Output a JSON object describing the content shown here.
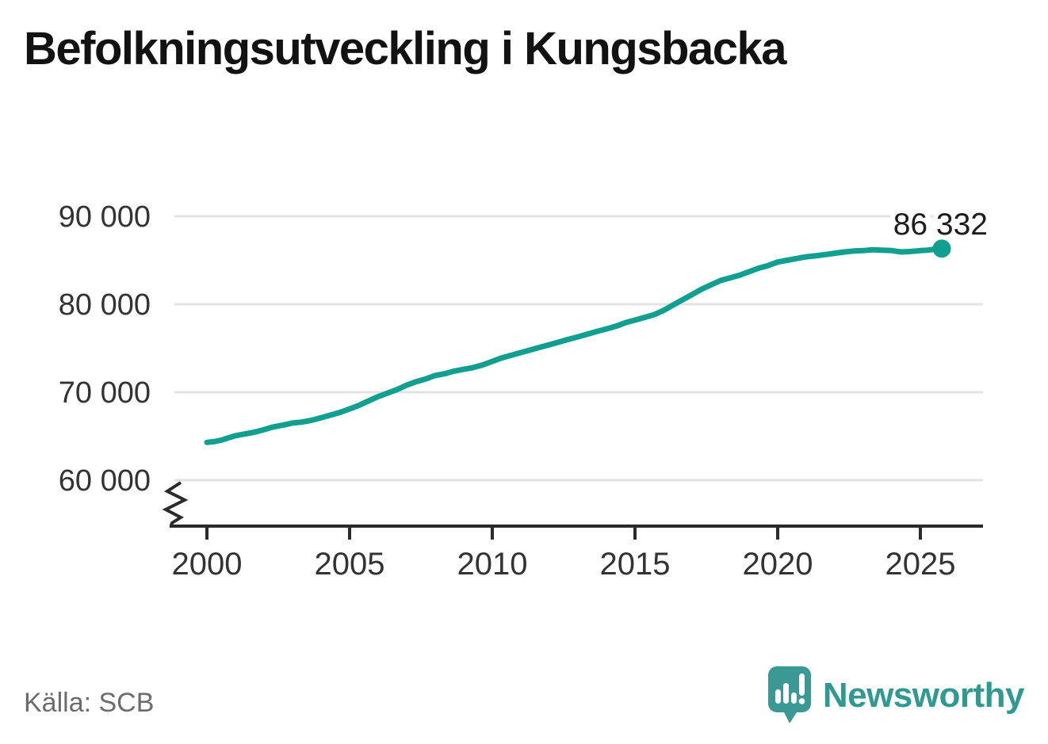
{
  "title": "Befolkningsutveckling i Kungsbacka",
  "source": {
    "label": "Källa: SCB"
  },
  "branding": {
    "wordmark": "Newsworthy",
    "icon": "newsworthy-chart-bubble-icon",
    "teal": "#2f9a92"
  },
  "colors": {
    "line": "#11a08f",
    "marker": "#11a08f",
    "grid": "#e3e3e3",
    "axis": "#2b2b2b",
    "tick_label": "#333333",
    "title_text": "#121212",
    "source_text": "#6c6c6c",
    "end_label_text": "#1d1d1d"
  },
  "chart_data": {
    "type": "line",
    "title": "Befolkningsutveckling i Kungsbacka",
    "xlabel": "",
    "ylabel": "",
    "grid": "horizontal-only",
    "legend": "none",
    "y_axis_break": true,
    "ylim": [
      60000,
      90000
    ],
    "xlim": [
      1998.9,
      2027.2
    ],
    "y_ticks": [
      {
        "label": "90 000",
        "value": 90000
      },
      {
        "label": "80 000",
        "value": 80000
      },
      {
        "label": "70 000",
        "value": 70000
      },
      {
        "label": "60 000",
        "value": 60000
      }
    ],
    "x_ticks": [
      {
        "label": "2000",
        "value": 2000
      },
      {
        "label": "2005",
        "value": 2005
      },
      {
        "label": "2010",
        "value": 2010
      },
      {
        "label": "2015",
        "value": 2015
      },
      {
        "label": "2020",
        "value": 2020
      },
      {
        "label": "2025",
        "value": 2025
      }
    ],
    "end_label": "86 332",
    "end_value": 86332,
    "series": [
      {
        "name": "Befolkning i Kungsbacka",
        "points": [
          [
            2000.0,
            64300
          ],
          [
            2000.25,
            64380
          ],
          [
            2000.5,
            64550
          ],
          [
            2000.75,
            64800
          ],
          [
            2001.0,
            65050
          ],
          [
            2001.33,
            65250
          ],
          [
            2001.66,
            65450
          ],
          [
            2002.0,
            65750
          ],
          [
            2002.33,
            66050
          ],
          [
            2002.66,
            66250
          ],
          [
            2003.0,
            66500
          ],
          [
            2003.33,
            66600
          ],
          [
            2003.66,
            66800
          ],
          [
            2004.0,
            67100
          ],
          [
            2004.33,
            67400
          ],
          [
            2004.66,
            67700
          ],
          [
            2005.0,
            68100
          ],
          [
            2005.33,
            68500
          ],
          [
            2005.66,
            69000
          ],
          [
            2006.0,
            69500
          ],
          [
            2006.33,
            69900
          ],
          [
            2006.66,
            70300
          ],
          [
            2007.0,
            70800
          ],
          [
            2007.33,
            71200
          ],
          [
            2007.66,
            71500
          ],
          [
            2008.0,
            71900
          ],
          [
            2008.33,
            72100
          ],
          [
            2008.66,
            72400
          ],
          [
            2009.0,
            72600
          ],
          [
            2009.33,
            72800
          ],
          [
            2009.66,
            73100
          ],
          [
            2010.0,
            73500
          ],
          [
            2010.33,
            73900
          ],
          [
            2010.66,
            74200
          ],
          [
            2011.0,
            74500
          ],
          [
            2011.33,
            74800
          ],
          [
            2011.66,
            75100
          ],
          [
            2012.0,
            75400
          ],
          [
            2012.33,
            75700
          ],
          [
            2012.66,
            76000
          ],
          [
            2013.0,
            76300
          ],
          [
            2013.33,
            76600
          ],
          [
            2013.66,
            76900
          ],
          [
            2014.0,
            77200
          ],
          [
            2014.33,
            77500
          ],
          [
            2014.66,
            77900
          ],
          [
            2015.0,
            78200
          ],
          [
            2015.33,
            78500
          ],
          [
            2015.66,
            78800
          ],
          [
            2016.0,
            79300
          ],
          [
            2016.33,
            79900
          ],
          [
            2016.66,
            80500
          ],
          [
            2017.0,
            81100
          ],
          [
            2017.33,
            81700
          ],
          [
            2017.66,
            82200
          ],
          [
            2018.0,
            82700
          ],
          [
            2018.33,
            83000
          ],
          [
            2018.66,
            83300
          ],
          [
            2019.0,
            83700
          ],
          [
            2019.33,
            84100
          ],
          [
            2019.66,
            84400
          ],
          [
            2020.0,
            84800
          ],
          [
            2020.33,
            85000
          ],
          [
            2020.66,
            85200
          ],
          [
            2021.0,
            85400
          ],
          [
            2021.33,
            85500
          ],
          [
            2021.66,
            85650
          ],
          [
            2022.0,
            85800
          ],
          [
            2022.33,
            85950
          ],
          [
            2022.66,
            86050
          ],
          [
            2023.0,
            86100
          ],
          [
            2023.33,
            86200
          ],
          [
            2023.66,
            86150
          ],
          [
            2024.0,
            86100
          ],
          [
            2024.33,
            85950
          ],
          [
            2024.66,
            86000
          ],
          [
            2025.0,
            86100
          ],
          [
            2025.25,
            86150
          ],
          [
            2025.5,
            86250
          ],
          [
            2025.75,
            86332
          ]
        ]
      }
    ]
  }
}
